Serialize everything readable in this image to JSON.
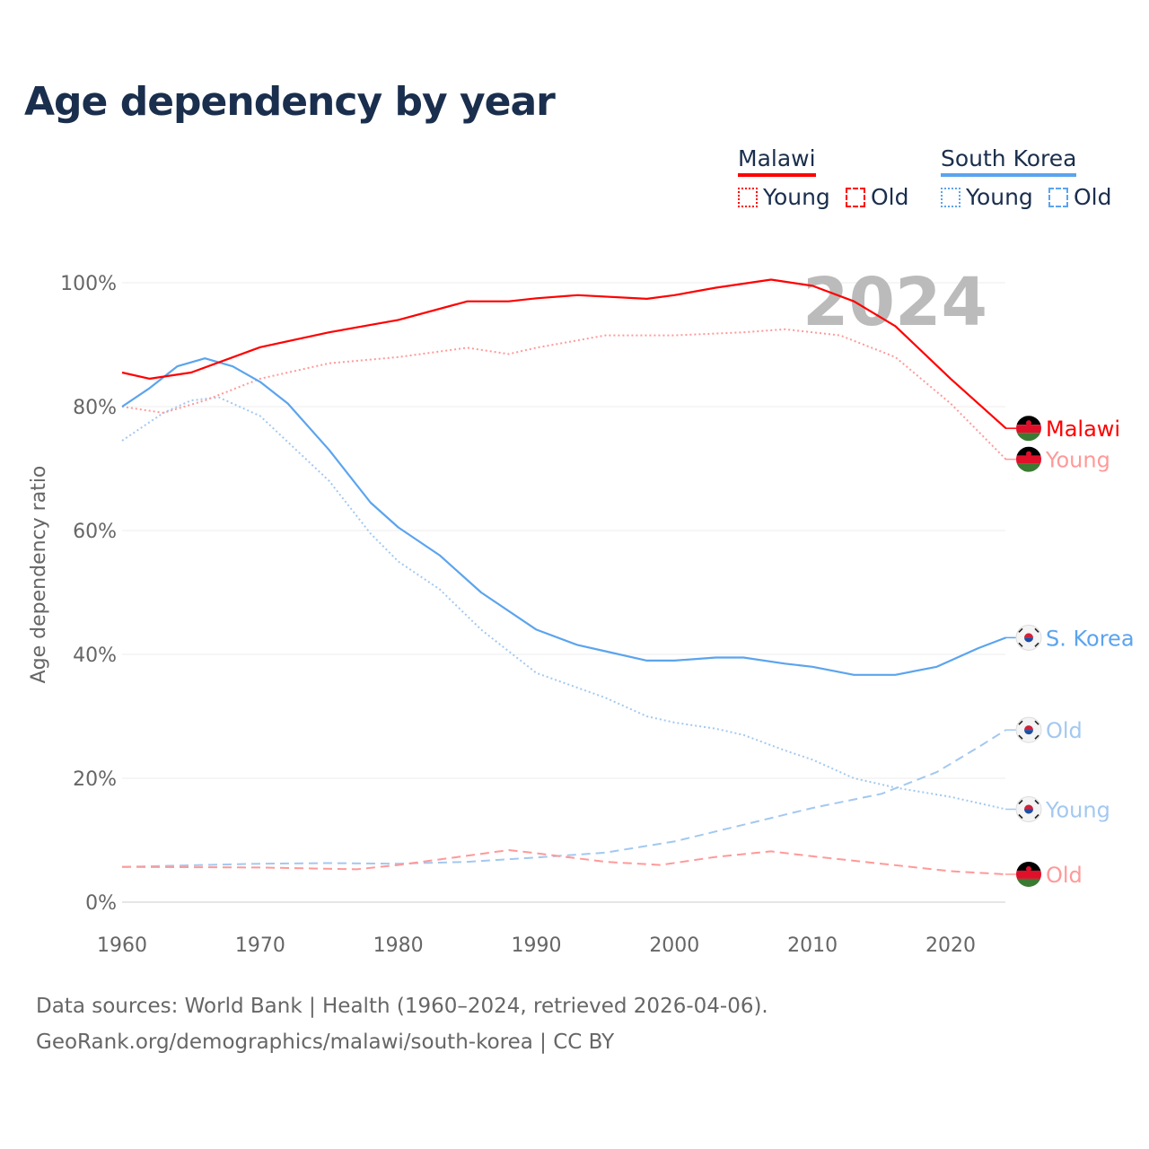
{
  "title": "Age dependency by year",
  "legend": {
    "malawi": "Malawi",
    "korea": "South Korea",
    "young": "Young",
    "old": "Old"
  },
  "colors": {
    "malawi": "#ff0000",
    "malawi_light": "#ff9999",
    "korea": "#5ba4ee",
    "korea_light": "#a3c8f0"
  },
  "footer": {
    "line1": "Data sources: World Bank | Health (1960–2024, retrieved 2026-04-06).",
    "line2": "GeoRank.org/demographics/malawi/south-korea | CC BY"
  },
  "chart_data": {
    "type": "line",
    "title": "Age dependency by year",
    "xlabel": "",
    "ylabel": "Age dependency ratio",
    "xlim": [
      1960,
      2024
    ],
    "ylim": [
      0,
      100
    ],
    "year_watermark": "2024",
    "xticks": [
      "1960",
      "1970",
      "1980",
      "1990",
      "2000",
      "2010",
      "2020"
    ],
    "yticks": [
      "0%",
      "20%",
      "40%",
      "60%",
      "80%",
      "100%"
    ],
    "series": [
      {
        "name": "Malawi",
        "end_label": "Malawi",
        "style": "solid",
        "color": "#ff0000",
        "x": [
          1960,
          1962,
          1965,
          1970,
          1975,
          1980,
          1985,
          1988,
          1990,
          1993,
          1998,
          2000,
          2003,
          2007,
          2010,
          2013,
          2016,
          2020,
          2024
        ],
        "values": [
          85.5,
          84.5,
          85.5,
          89.6,
          92,
          94,
          97,
          97,
          97.5,
          98,
          97.4,
          98,
          99.2,
          100.5,
          99.5,
          97,
          93,
          84.5,
          76.5
        ]
      },
      {
        "name": "Malawi Young",
        "end_label": "Young",
        "style": "dotted",
        "color": "#ff9999",
        "x": [
          1960,
          1963,
          1966,
          1970,
          1975,
          1980,
          1985,
          1988,
          1990,
          1995,
          2000,
          2005,
          2008,
          2012,
          2016,
          2020,
          2024
        ],
        "values": [
          80,
          79,
          81,
          84.5,
          87,
          88,
          89.5,
          88.5,
          89.5,
          91.5,
          91.5,
          92,
          92.5,
          91.5,
          88,
          80.5,
          71.5
        ]
      },
      {
        "name": "Malawi Old",
        "end_label": "Old",
        "style": "dashed",
        "color": "#ff9999",
        "x": [
          1960,
          1970,
          1977,
          1980,
          1985,
          1988,
          1990,
          1995,
          1999,
          2003,
          2007,
          2010,
          2015,
          2020,
          2024
        ],
        "values": [
          5.7,
          5.6,
          5.3,
          6,
          7.5,
          8.4,
          7.9,
          6.5,
          6,
          7.3,
          8.2,
          7.4,
          6.2,
          5,
          4.5
        ]
      },
      {
        "name": "South Korea",
        "end_label": "S. Korea",
        "style": "solid",
        "color": "#5ba4ee",
        "x": [
          1960,
          1962,
          1964,
          1966,
          1968,
          1970,
          1972,
          1975,
          1978,
          1980,
          1983,
          1986,
          1990,
          1993,
          1995,
          1998,
          2000,
          2003,
          2005,
          2008,
          2010,
          2013,
          2016,
          2019,
          2022,
          2024
        ],
        "values": [
          80,
          83,
          86.5,
          87.8,
          86.5,
          84,
          80.5,
          73,
          64.5,
          60.5,
          56,
          50,
          44,
          41.5,
          40.5,
          39,
          39,
          39.5,
          39.5,
          38.5,
          38,
          36.7,
          36.7,
          38,
          41,
          42.7
        ]
      },
      {
        "name": "South Korea Young",
        "end_label": "Young",
        "style": "dotted",
        "color": "#a3c8f0",
        "x": [
          1960,
          1963,
          1965,
          1967,
          1970,
          1975,
          1978,
          1980,
          1983,
          1986,
          1990,
          1995,
          1998,
          2000,
          2003,
          2005,
          2008,
          2010,
          2013,
          2016,
          2020,
          2024
        ],
        "values": [
          74.5,
          79,
          81,
          81.5,
          78.5,
          68,
          59.5,
          55,
          50.5,
          44,
          37,
          33,
          30,
          29,
          28,
          27,
          24.5,
          23,
          20,
          18.5,
          17,
          15
        ]
      },
      {
        "name": "South Korea Old",
        "end_label": "Old",
        "style": "dashed",
        "color": "#a3c8f0",
        "x": [
          1960,
          1970,
          1975,
          1980,
          1985,
          1990,
          1995,
          2000,
          2005,
          2010,
          2015,
          2019,
          2022,
          2024
        ],
        "values": [
          5.7,
          6.2,
          6.3,
          6.2,
          6.5,
          7.2,
          8,
          9.8,
          12.5,
          15.2,
          17.5,
          21,
          25,
          27.8
        ]
      }
    ]
  }
}
